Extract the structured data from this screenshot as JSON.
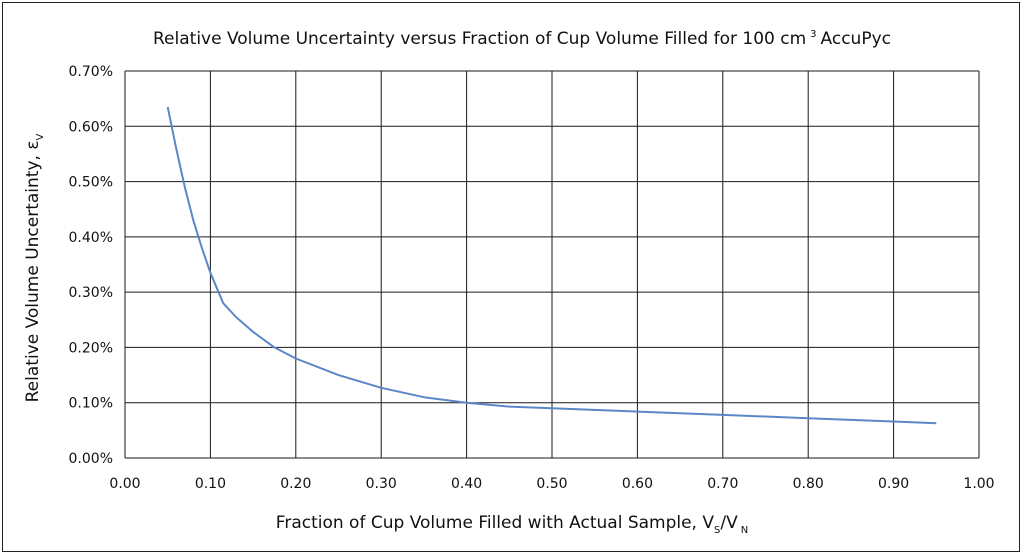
{
  "chart_data": {
    "type": "line",
    "title": "Relative Volume Uncertainty versus Fraction of Cup Volume Filled for 100 cm",
    "title_sup": "3",
    "title_tail": "AccuPyc",
    "xlabel": "Fraction of Cup Volume Filled with Actual Sample, V",
    "xlabel_sub1": "S",
    "xlabel_mid": "/V",
    "xlabel_sub2": "N",
    "ylabel": "Relative Volume Uncertainty, ε",
    "ylabel_sub": "V",
    "xlim": [
      0,
      1
    ],
    "ylim": [
      0,
      0.7
    ],
    "x_ticks": [
      0,
      0.1,
      0.2,
      0.3,
      0.4,
      0.5,
      0.6,
      0.7,
      0.8,
      0.9,
      1.0
    ],
    "x_tick_labels": [
      "0.00",
      "0.10",
      "0.20",
      "0.30",
      "0.40",
      "0.50",
      "0.60",
      "0.70",
      "0.80",
      "0.90",
      "1.00"
    ],
    "y_ticks": [
      0,
      0.1,
      0.2,
      0.3,
      0.4,
      0.5,
      0.6,
      0.7
    ],
    "y_tick_labels": [
      "0.00%",
      "0.10%",
      "0.20%",
      "0.30%",
      "0.40%",
      "0.50%",
      "0.60%",
      "0.70%"
    ],
    "grid": true,
    "legend": "none",
    "series": [
      {
        "color": "#5b87c7",
        "x": [
          0.05,
          0.06,
          0.07,
          0.08,
          0.09,
          0.1,
          0.115,
          0.13,
          0.15,
          0.175,
          0.2,
          0.25,
          0.3,
          0.35,
          0.4,
          0.45,
          0.5,
          0.6,
          0.7,
          0.8,
          0.9,
          0.95
        ],
        "y": [
          0.635,
          0.56,
          0.49,
          0.43,
          0.38,
          0.335,
          0.28,
          0.255,
          0.228,
          0.2,
          0.18,
          0.15,
          0.127,
          0.11,
          0.1,
          0.093,
          0.09,
          0.084,
          0.078,
          0.072,
          0.066,
          0.063
        ]
      }
    ]
  }
}
